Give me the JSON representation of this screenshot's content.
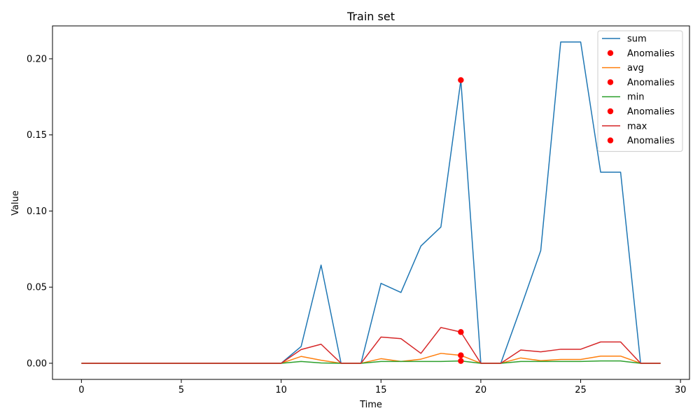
{
  "chart_data": {
    "type": "line",
    "title": "Train set",
    "xlabel": "Time",
    "ylabel": "Value",
    "xlim": [
      -1.45,
      30.45
    ],
    "ylim": [
      -0.0106,
      0.2216
    ],
    "xticks": [
      0,
      5,
      10,
      15,
      20,
      25,
      30
    ],
    "xtick_labels": [
      "0",
      "5",
      "10",
      "15",
      "20",
      "25",
      "30"
    ],
    "yticks": [
      0.0,
      0.05,
      0.1,
      0.15,
      0.2
    ],
    "ytick_labels": [
      "0.00",
      "0.05",
      "0.10",
      "0.15",
      "0.20"
    ],
    "grid": false,
    "legend_position": "top-right",
    "x": [
      0,
      1,
      2,
      3,
      4,
      5,
      6,
      7,
      8,
      9,
      10,
      11,
      12,
      13,
      14,
      15,
      16,
      17,
      18,
      19,
      20,
      21,
      22,
      23,
      24,
      25,
      26,
      27,
      28,
      29
    ],
    "series": [
      {
        "name": "sum",
        "color": "#1f77b4",
        "values": [
          0,
          0,
          0,
          0,
          0,
          0,
          0,
          0,
          0,
          0,
          0,
          0.011,
          0.0645,
          0,
          0,
          0.0525,
          0.0465,
          0.077,
          0.0895,
          0.186,
          0,
          0,
          0.0365,
          0.074,
          0.211,
          0.211,
          0.1255,
          0.1255,
          0,
          0
        ]
      },
      {
        "name": "avg",
        "color": "#ff7f0e",
        "values": [
          0,
          0,
          0,
          0,
          0,
          0,
          0,
          0,
          0,
          0,
          0,
          0.0045,
          0.002,
          0,
          0,
          0.003,
          0.0012,
          0.0027,
          0.0065,
          0.0052,
          0,
          0,
          0.0035,
          0.0017,
          0.0025,
          0.0025,
          0.0047,
          0.0047,
          0,
          0
        ]
      },
      {
        "name": "min",
        "color": "#2ca02c",
        "values": [
          0,
          0,
          0,
          0,
          0,
          0,
          0,
          0,
          0,
          0,
          0,
          0.0012,
          0.0002,
          0,
          0,
          0.0012,
          0.0012,
          0.0012,
          0.0012,
          0.0015,
          0,
          0,
          0.0012,
          0.0012,
          0.0012,
          0.0012,
          0.0015,
          0.0015,
          0,
          0
        ]
      },
      {
        "name": "max",
        "color": "#d62728",
        "values": [
          0,
          0,
          0,
          0,
          0,
          0,
          0,
          0,
          0,
          0,
          0,
          0.009,
          0.0125,
          0,
          0,
          0.0172,
          0.0162,
          0.0065,
          0.0235,
          0.0205,
          0,
          0,
          0.0087,
          0.0075,
          0.0092,
          0.0092,
          0.014,
          0.014,
          0,
          0
        ]
      }
    ],
    "anomalies": [
      {
        "name": "Anomalies",
        "color": "#ff0000",
        "x": 19,
        "y": 0.186
      },
      {
        "name": "Anomalies",
        "color": "#ff0000",
        "x": 19,
        "y": 0.0052
      },
      {
        "name": "Anomalies",
        "color": "#ff0000",
        "x": 19,
        "y": 0.0015
      },
      {
        "name": "Anomalies",
        "color": "#ff0000",
        "x": 19,
        "y": 0.0205
      }
    ],
    "legend": [
      "sum",
      "Anomalies",
      "avg",
      "Anomalies",
      "min",
      "Anomalies",
      "max",
      "Anomalies"
    ]
  }
}
